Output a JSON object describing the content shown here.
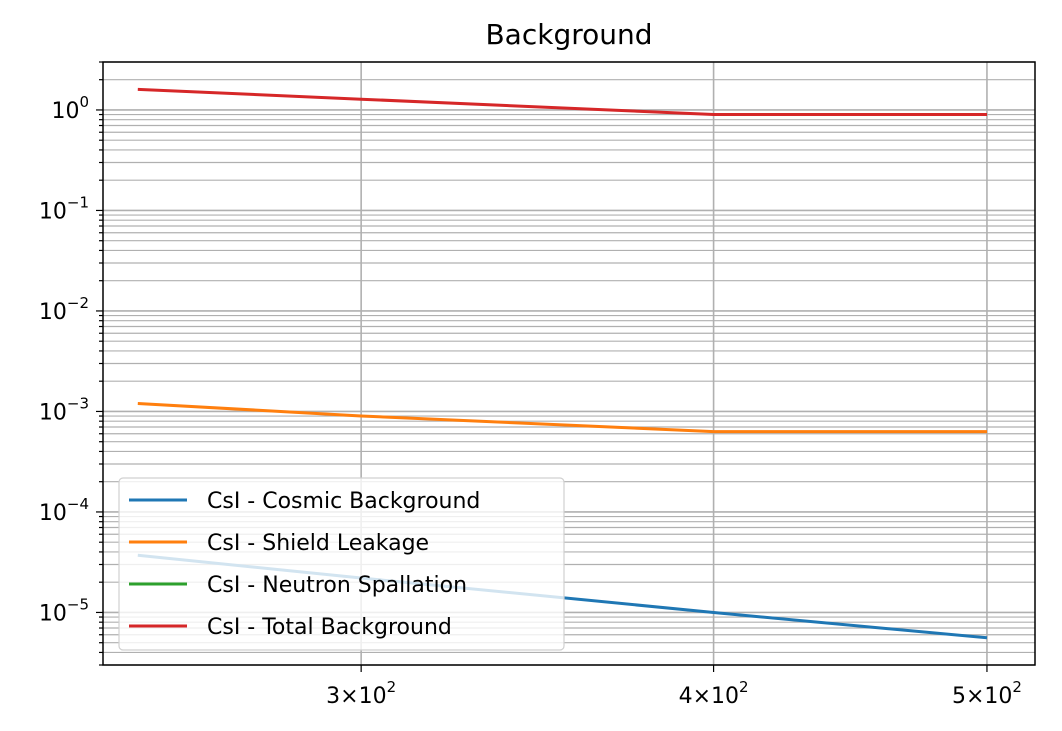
{
  "chart_data": {
    "type": "line",
    "title": "Background",
    "xlabel": "",
    "ylabel": "",
    "xscale": "log",
    "yscale": "log",
    "xlim": [
      243,
      520
    ],
    "ylim": [
      3e-06,
      3
    ],
    "grid": "on (major and minor)",
    "legend_position": "lower-left",
    "x_ticks": [
      {
        "value": 300,
        "mantissa": "3",
        "exponent": "2"
      },
      {
        "value": 400,
        "mantissa": "4",
        "exponent": "2"
      },
      {
        "value": 500,
        "mantissa": "5",
        "exponent": "2"
      }
    ],
    "y_ticks": [
      {
        "value": 1e-05,
        "exponent": "−5"
      },
      {
        "value": 0.0001,
        "exponent": "−4"
      },
      {
        "value": 0.001,
        "exponent": "−3"
      },
      {
        "value": 0.01,
        "exponent": "−2"
      },
      {
        "value": 0.1,
        "exponent": "−1"
      },
      {
        "value": 1,
        "exponent": "0"
      }
    ],
    "tick_base": "10",
    "times_sign": "×",
    "series": [
      {
        "name": "CsI - Cosmic Background",
        "color": "#1f77b4",
        "x": [
          250,
          300,
          400,
          500
        ],
        "y": [
          3.7e-05,
          2.2e-05,
          1e-05,
          5.6e-06
        ]
      },
      {
        "name": "CsI - Shield Leakage",
        "color": "#ff7f0e",
        "x": [
          250,
          300,
          400,
          500
        ],
        "y": [
          0.0012,
          0.0009,
          0.00063,
          0.00063
        ]
      },
      {
        "name": "CsI - Neutron Spallation",
        "color": "#2ca02c",
        "x": [],
        "y": []
      },
      {
        "name": "CsI - Total Background",
        "color": "#d62728",
        "x": [
          250,
          300,
          400,
          500
        ],
        "y": [
          1.6,
          1.28,
          0.9,
          0.9
        ]
      }
    ]
  }
}
